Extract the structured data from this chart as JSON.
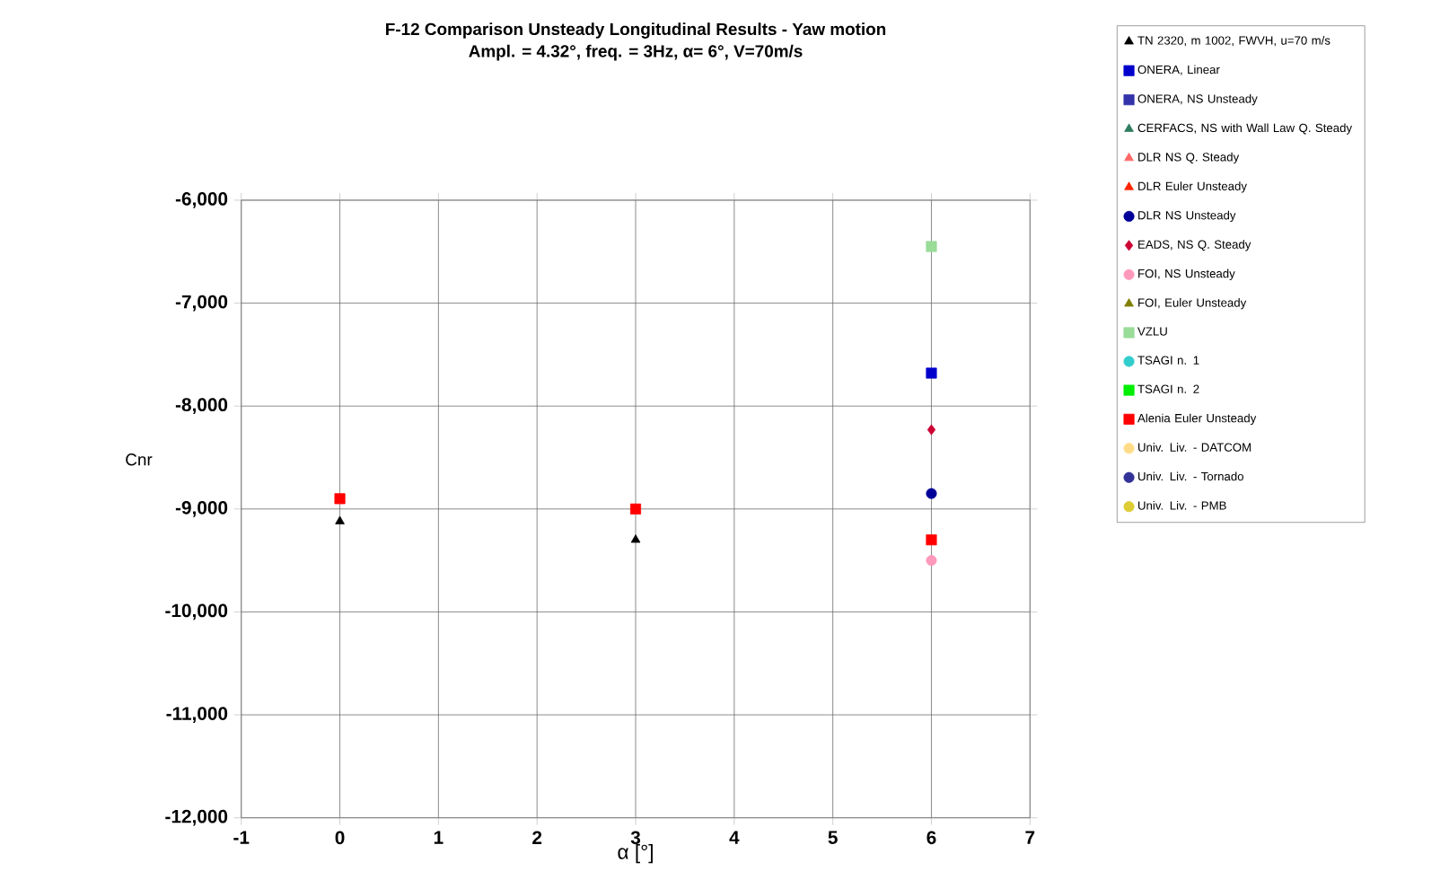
{
  "chart_data": {
    "type": "scatter",
    "title": "F-12 Comparison Unsteady Longitudinal Results  -  Yaw motion",
    "subtitle": "Ampl. = 4.32°, freq. = 3Hz, α= 6°, V=70m/s",
    "xlabel": "α [°]",
    "ylabel": "Cnr",
    "xlim": [
      -1,
      7
    ],
    "xticks": [
      -1,
      0,
      1,
      2,
      3,
      4,
      5,
      6,
      7
    ],
    "ylim": [
      -12000,
      -6000
    ],
    "yticks": [
      {
        "value": -12000,
        "label": "-12,000"
      },
      {
        "value": -11000,
        "label": "-11,000"
      },
      {
        "value": -10000,
        "label": "-10,000"
      },
      {
        "value": -9000,
        "label": "-9,000"
      },
      {
        "value": -8000,
        "label": "-8,000"
      },
      {
        "value": -7000,
        "label": "-7,000"
      },
      {
        "value": -6000,
        "label": "-6,000"
      }
    ],
    "grid": true,
    "legend": "right",
    "series": [
      {
        "name": "TN 2320, m 1002, FWVH, u=70 m/s",
        "color": "#000000",
        "marker": "triangle",
        "x": [
          0,
          3
        ],
        "values": [
          -9120,
          -9300
        ]
      },
      {
        "name": "ONERA, Linear",
        "color": "#0000cc",
        "marker": "square",
        "x": [
          6
        ],
        "values": [
          -7680
        ]
      },
      {
        "name": "ONERA, NS Unsteady",
        "color": "#3333aa",
        "marker": "square"
      },
      {
        "name": "CERFACS, NS with Wall Law Q. Steady",
        "color": "#2e7d5e",
        "marker": "triangle"
      },
      {
        "name": "DLR NS Q. Steady",
        "color": "#ff6666",
        "marker": "triangle"
      },
      {
        "name": "DLR Euler Unsteady",
        "color": "#ff2200",
        "marker": "triangle"
      },
      {
        "name": "DLR NS Unsteady",
        "color": "#000099",
        "marker": "circle",
        "x": [
          6
        ],
        "values": [
          -8850
        ]
      },
      {
        "name": "EADS, NS Q. Steady",
        "color": "#cc0033",
        "marker": "diamond",
        "x": [
          6
        ],
        "values": [
          -8230
        ]
      },
      {
        "name": "FOI, NS Unsteady",
        "color": "#ff99bb",
        "marker": "circle",
        "x": [
          6
        ],
        "values": [
          -9500
        ]
      },
      {
        "name": "FOI, Euler Unsteady",
        "color": "#808000",
        "marker": "triangle"
      },
      {
        "name": "VZLU",
        "color": "#99dd99",
        "marker": "square",
        "x": [
          6
        ],
        "values": [
          -6450
        ]
      },
      {
        "name": "TSAGI n. 1",
        "color": "#33cccc",
        "marker": "circle"
      },
      {
        "name": "TSAGI n. 2",
        "color": "#00ee00",
        "marker": "square"
      },
      {
        "name": "Alenia Euler Unsteady",
        "color": "#ff0000",
        "marker": "square",
        "x": [
          0,
          3,
          6
        ],
        "values": [
          -8900,
          -9000,
          -9300
        ]
      },
      {
        "name": "Univ. Liv. - DATCOM",
        "color": "#ffdd88",
        "marker": "circle"
      },
      {
        "name": "Univ. Liv. - Tornado",
        "color": "#333399",
        "marker": "circle"
      },
      {
        "name": "Univ. Liv. - PMB",
        "color": "#ddcc33",
        "marker": "circle"
      }
    ]
  }
}
